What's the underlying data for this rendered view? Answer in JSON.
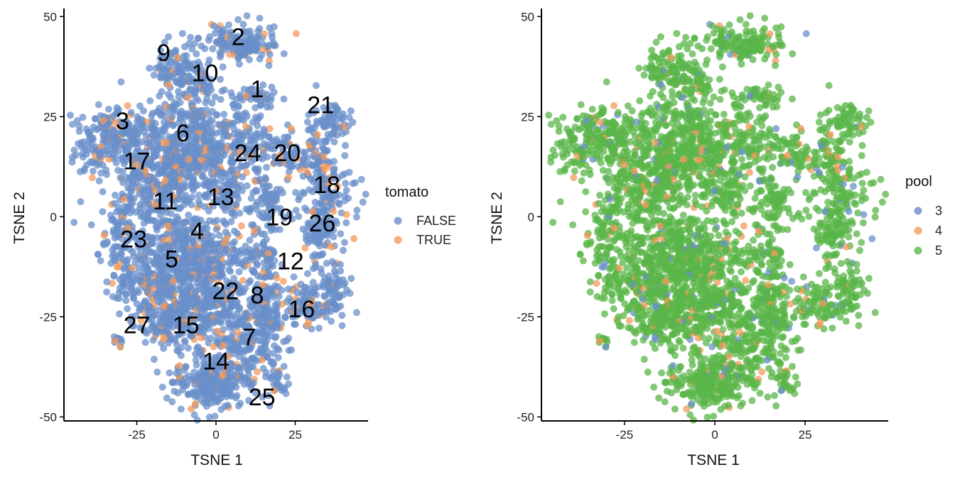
{
  "colors": {
    "blue": "#6a8fc9",
    "orange": "#f39a5b",
    "green": "#5ab648",
    "axis": "#000000"
  },
  "chart_data": [
    {
      "type": "scatter",
      "xlabel": "TSNE 1",
      "ylabel": "TSNE 2",
      "xlim": [
        -48,
        48
      ],
      "ylim": [
        -51,
        52
      ],
      "x_ticks": [
        -25,
        0,
        25
      ],
      "y_ticks": [
        -50,
        -25,
        0,
        25,
        50
      ],
      "grid": false,
      "legend": {
        "title": "tomato",
        "position": "right",
        "entries": [
          {
            "label": "FALSE",
            "color": "#6a8fc9"
          },
          {
            "label": "TRUE",
            "color": "#f39a5b"
          }
        ]
      },
      "cluster_labels": [
        {
          "label": "2",
          "x": 7,
          "y": 45
        },
        {
          "label": "9",
          "x": -16.5,
          "y": 41
        },
        {
          "label": "10",
          "x": -3.5,
          "y": 36
        },
        {
          "label": "1",
          "x": 13,
          "y": 32
        },
        {
          "label": "21",
          "x": 33,
          "y": 28
        },
        {
          "label": "3",
          "x": -29.5,
          "y": 24
        },
        {
          "label": "6",
          "x": -10.5,
          "y": 21
        },
        {
          "label": "24",
          "x": 10,
          "y": 16
        },
        {
          "label": "20",
          "x": 22.5,
          "y": 16
        },
        {
          "label": "17",
          "x": -25,
          "y": 14
        },
        {
          "label": "18",
          "x": 35,
          "y": 8
        },
        {
          "label": "11",
          "x": -16,
          "y": 4
        },
        {
          "label": "13",
          "x": 1.5,
          "y": 5
        },
        {
          "label": "19",
          "x": 20,
          "y": 0
        },
        {
          "label": "26",
          "x": 33.5,
          "y": -1.5
        },
        {
          "label": "4",
          "x": -6,
          "y": -3.5
        },
        {
          "label": "23",
          "x": -26,
          "y": -5.5
        },
        {
          "label": "5",
          "x": -14,
          "y": -10.5
        },
        {
          "label": "12",
          "x": 23.5,
          "y": -11
        },
        {
          "label": "8",
          "x": 13,
          "y": -19.5
        },
        {
          "label": "22",
          "x": 3,
          "y": -18.5
        },
        {
          "label": "16",
          "x": 27,
          "y": -23
        },
        {
          "label": "27",
          "x": -25,
          "y": -27
        },
        {
          "label": "15",
          "x": -9.5,
          "y": -27
        },
        {
          "label": "7",
          "x": 10.5,
          "y": -30
        },
        {
          "label": "14",
          "x": 0,
          "y": -36
        },
        {
          "label": "25",
          "x": 14.5,
          "y": -45
        }
      ]
    },
    {
      "type": "scatter",
      "xlabel": "TSNE 1",
      "ylabel": "TSNE 2",
      "xlim": [
        -48,
        48
      ],
      "ylim": [
        -51,
        52
      ],
      "x_ticks": [
        -25,
        0,
        25
      ],
      "y_ticks": [
        -50,
        -25,
        0,
        25,
        50
      ],
      "grid": false,
      "legend": {
        "title": "pool",
        "position": "right",
        "entries": [
          {
            "label": "3",
            "color": "#6a8fc9"
          },
          {
            "label": "4",
            "color": "#f39a5b"
          },
          {
            "label": "5",
            "color": "#5ab648"
          }
        ]
      }
    }
  ]
}
